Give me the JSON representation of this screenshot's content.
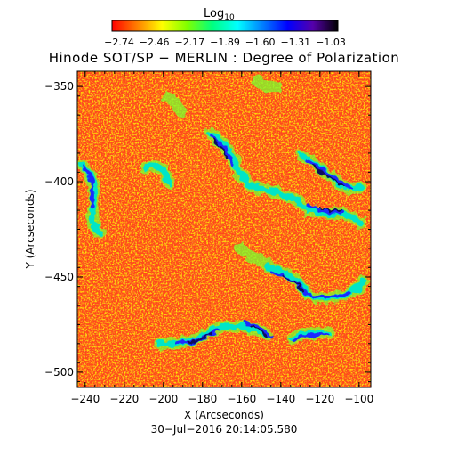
{
  "colorbar": {
    "label": "Log",
    "label_subscript": "10",
    "tick_labels": [
      "−2.74",
      "−2.46",
      "−2.17",
      "−1.89",
      "−1.60",
      "−1.31",
      "−1.03"
    ],
    "palette": [
      "#ff0000",
      "#ff7f00",
      "#ffff00",
      "#7fff00",
      "#00ff7f",
      "#00ffff",
      "#007fff",
      "#0000ff",
      "#5500aa",
      "#000000"
    ]
  },
  "title": "Hinode SOT/SP − MERLIN : Degree of Polarization",
  "axes": {
    "xlabel": "X (Arcseconds)",
    "ylabel": "Y (Arcseconds)",
    "x_ticks": [
      "−240",
      "−220",
      "−200",
      "−180",
      "−160",
      "−140",
      "−120",
      "−100"
    ],
    "y_ticks": [
      "−350",
      "−400",
      "−450",
      "−500"
    ],
    "x_range": [
      -244,
      -94
    ],
    "y_range": [
      -508,
      -342
    ]
  },
  "footer": {
    "timestamp": "30−Jul−2016 20:14:05.580"
  },
  "image": {
    "description_colors": {
      "background": "#ff4a1a",
      "speckle_yellow": "#ffd400",
      "speckle_green": "#7cff2e",
      "network_cyan": "#00e5c8",
      "network_blue": "#1a2cff",
      "network_dark": "#08105e"
    }
  }
}
